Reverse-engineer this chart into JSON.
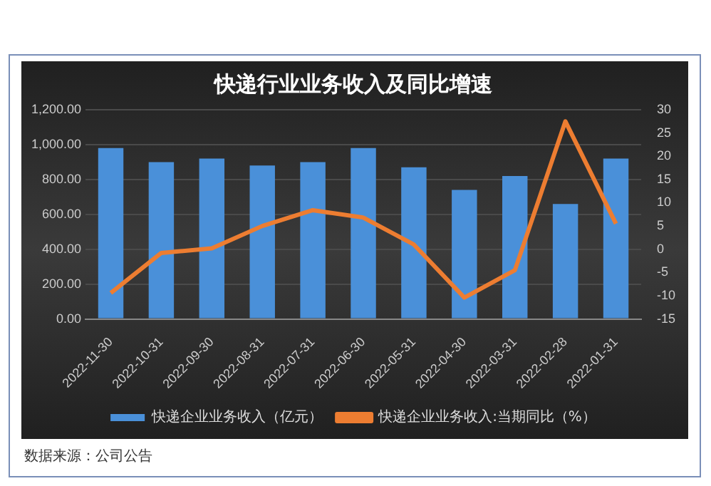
{
  "chart_data": {
    "type": "bar",
    "title": "快递行业业务收入及同比增速",
    "categories": [
      "2022-11-30",
      "2022-10-31",
      "2022-09-30",
      "2022-08-31",
      "2022-07-31",
      "2022-06-30",
      "2022-05-31",
      "2022-04-30",
      "2022-03-31",
      "2022-02-28",
      "2022-01-31"
    ],
    "series": [
      {
        "name": "快递企业业务收入（亿元）",
        "color": "#4a90d9",
        "values": [
          980,
          900,
          920,
          880,
          900,
          980,
          870,
          740,
          820,
          660,
          920
        ]
      },
      {
        "name": "快递企业业务收入:当期同比（%）",
        "type": "line",
        "axis": "y2",
        "color": "#ed7d31",
        "values": [
          -9.4,
          -0.8,
          0.2,
          5.0,
          8.4,
          6.8,
          1.0,
          -10.4,
          -4.5,
          27.5,
          5.5
        ]
      }
    ],
    "ylim": [
      0,
      1200
    ],
    "yticks": [
      {
        "value": 0,
        "label": "0.00"
      },
      {
        "value": 200,
        "label": "200.00"
      },
      {
        "value": 400,
        "label": "400.00"
      },
      {
        "value": 600,
        "label": "600.00"
      },
      {
        "value": 800,
        "label": "800.00"
      },
      {
        "value": 1000,
        "label": "1,000.00"
      },
      {
        "value": 1200,
        "label": "1,200.00"
      }
    ],
    "y2lim": [
      -15,
      30
    ],
    "y2ticks": [
      -15,
      -10,
      -5,
      0,
      5,
      10,
      15,
      20,
      25,
      30
    ],
    "grid": "y",
    "legend": "bottom",
    "marker": "none",
    "annotations": [
      "数据来源：公司公告"
    ]
  }
}
